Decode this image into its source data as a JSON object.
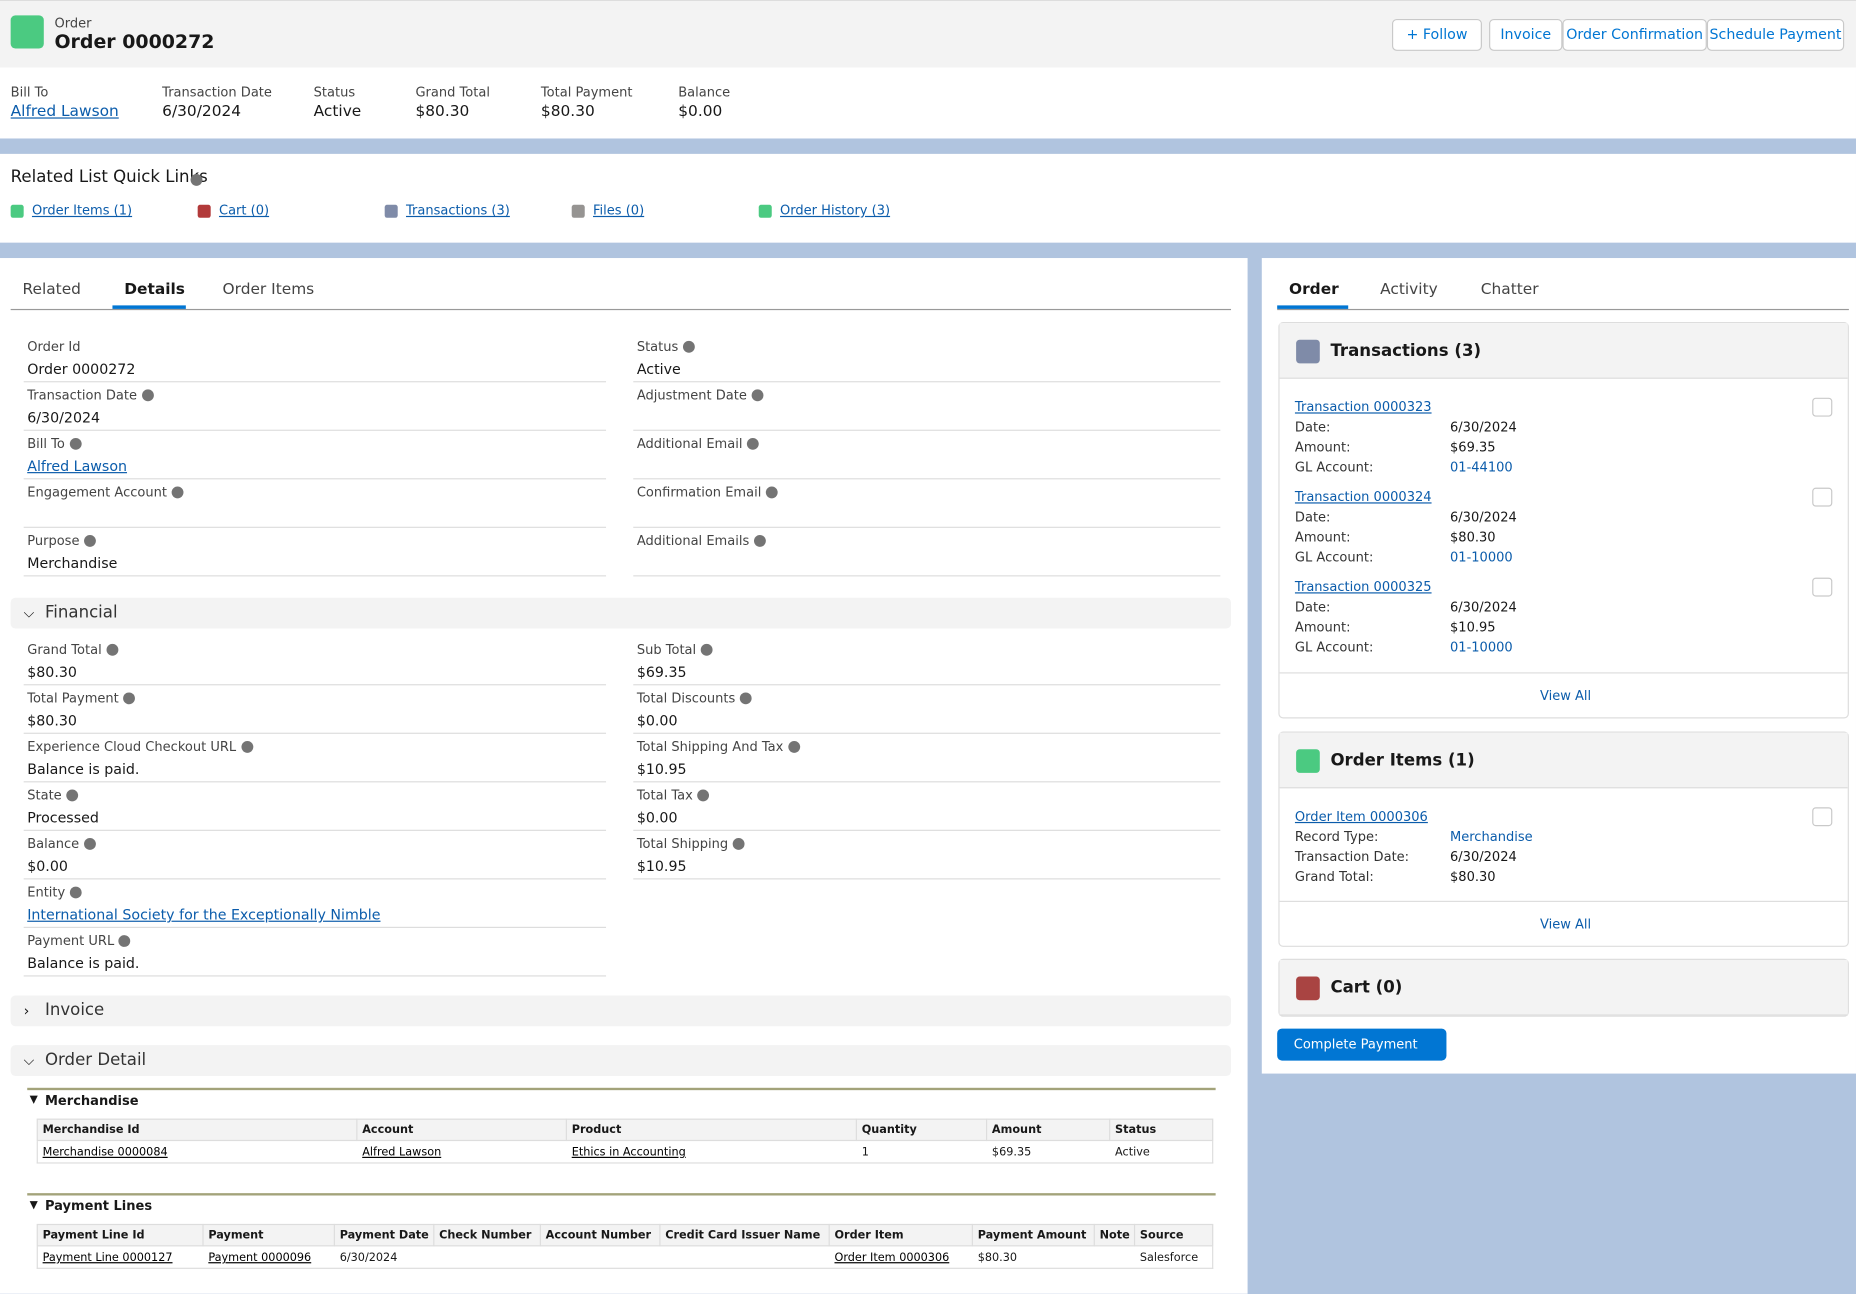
{
  "header": {
    "object_type": "Order",
    "title": "Order 0000272",
    "buttons": [
      "Follow",
      "Invoice",
      "Order Confirmation",
      "Schedule Payment"
    ]
  },
  "highlights": [
    {
      "label": "Bill To",
      "value": "Alfred Lawson",
      "link": true
    },
    {
      "label": "Transaction Date",
      "value": "6/30/2024"
    },
    {
      "label": "Status",
      "value": "Active"
    },
    {
      "label": "Grand Total",
      "value": "$80.30"
    },
    {
      "label": "Total Payment",
      "value": "$80.30"
    },
    {
      "label": "Balance",
      "value": "$0.00"
    }
  ],
  "quick_links": {
    "title": "Related List Quick Links",
    "links": [
      "Order Items (1)",
      "Cart (0)",
      "Transactions (3)",
      "Files (0)",
      "Order History (3)"
    ]
  },
  "tabs": [
    "Related",
    "Details",
    "Order Items"
  ],
  "details": {
    "left": [
      {
        "label": "Order Id",
        "value": "Order 0000272"
      },
      {
        "label": "Transaction Date",
        "value": "6/30/2024",
        "info": true
      },
      {
        "label": "Bill To",
        "value": "Alfred Lawson",
        "info": true,
        "link": true
      },
      {
        "label": "Engagement Account",
        "info": true
      },
      {
        "label": "Purpose",
        "value": "Merchandise",
        "info": true
      }
    ],
    "right": [
      {
        "label": "Status",
        "value": "Active",
        "info": true
      },
      {
        "label": "Adjustment Date",
        "info": true
      },
      {
        "label": "Additional Email",
        "info": true
      },
      {
        "label": "Confirmation Email",
        "info": true
      },
      {
        "label": "Additional Emails",
        "info": true
      }
    ]
  },
  "financial": {
    "title": "Financial",
    "left": [
      {
        "label": "Grand Total",
        "value": "$80.30",
        "info": true
      },
      {
        "label": "Total Payment",
        "value": "$80.30",
        "info": true
      },
      {
        "label": "Experience Cloud Checkout URL",
        "value": "Balance is paid.",
        "info": true
      },
      {
        "label": "State",
        "value": "Processed",
        "info": true
      },
      {
        "label": "Balance",
        "value": "$0.00",
        "info": true
      },
      {
        "label": "Entity",
        "value": "International Society for the Exceptionally Nimble",
        "info": true,
        "link": true
      },
      {
        "label": "Payment URL",
        "value": "Balance is paid.",
        "info": true
      }
    ],
    "right": [
      {
        "label": "Sub Total",
        "value": "$69.35",
        "info": true
      },
      {
        "label": "Total Discounts",
        "value": "$0.00",
        "info": true
      },
      {
        "label": "Total Shipping And Tax",
        "value": "$10.95",
        "info": true
      },
      {
        "label": "Total Tax",
        "value": "$0.00",
        "info": true
      },
      {
        "label": "Total Shipping",
        "value": "$10.95",
        "info": true
      }
    ]
  },
  "invoice": {
    "title": "Invoice"
  },
  "order_detail": {
    "title": "Order Detail",
    "merchandise": {
      "title": "Merchandise",
      "columns": [
        "Merchandise Id",
        "Account",
        "Product",
        "Quantity",
        "Amount",
        "Status"
      ],
      "rows": [
        [
          "Merchandise 0000084",
          "Alfred Lawson",
          "Ethics in Accounting",
          "1",
          "$69.35",
          "Active"
        ]
      ]
    },
    "payment_lines": {
      "title": "Payment Lines",
      "columns": [
        "Payment Line Id",
        "Payment",
        "Payment Date",
        "Check Number",
        "Account Number",
        "Credit Card Issuer Name",
        "Order Item",
        "Payment Amount",
        "Note",
        "Source"
      ],
      "rows": [
        [
          "Payment Line 0000127",
          "Payment 0000096",
          "6/30/2024",
          null,
          null,
          null,
          "Order Item 0000306",
          "$80.30",
          null,
          "Salesforce"
        ]
      ]
    }
  },
  "side": {
    "tabs": [
      "Order",
      "Activity",
      "Chatter"
    ],
    "transactions": {
      "title": "Transactions (3)",
      "items": [
        {
          "name": "Transaction 0000323",
          "fields": [
            {
              "label": "Date:",
              "value": "6/30/2024"
            },
            {
              "label": "Amount:",
              "value": "$69.35"
            },
            {
              "label": "GL Account:",
              "value": "01-44100",
              "link": true
            }
          ]
        },
        {
          "name": "Transaction 0000324",
          "fields": [
            {
              "label": "Date:",
              "value": "6/30/2024"
            },
            {
              "label": "Amount:",
              "value": "$80.30"
            },
            {
              "label": "GL Account:",
              "value": "01-10000",
              "link": true
            }
          ]
        },
        {
          "name": "Transaction 0000325",
          "fields": [
            {
              "label": "Date:",
              "value": "6/30/2024"
            },
            {
              "label": "Amount:",
              "value": "$10.95"
            },
            {
              "label": "GL Account:",
              "value": "01-10000",
              "link": true
            }
          ]
        }
      ],
      "view_all": "View All"
    },
    "order_items": {
      "title": "Order Items (1)",
      "items": [
        {
          "name": "Order Item 0000306",
          "fields": [
            {
              "label": "Record Type:",
              "value": "Merchandise",
              "link": true
            },
            {
              "label": "Transaction Date:",
              "value": "6/30/2024"
            },
            {
              "label": "Grand Total:",
              "value": "$80.30"
            }
          ]
        }
      ],
      "view_all": "View All"
    },
    "cart": {
      "title": "Cart (0)"
    },
    "button": "Complete Payment"
  }
}
